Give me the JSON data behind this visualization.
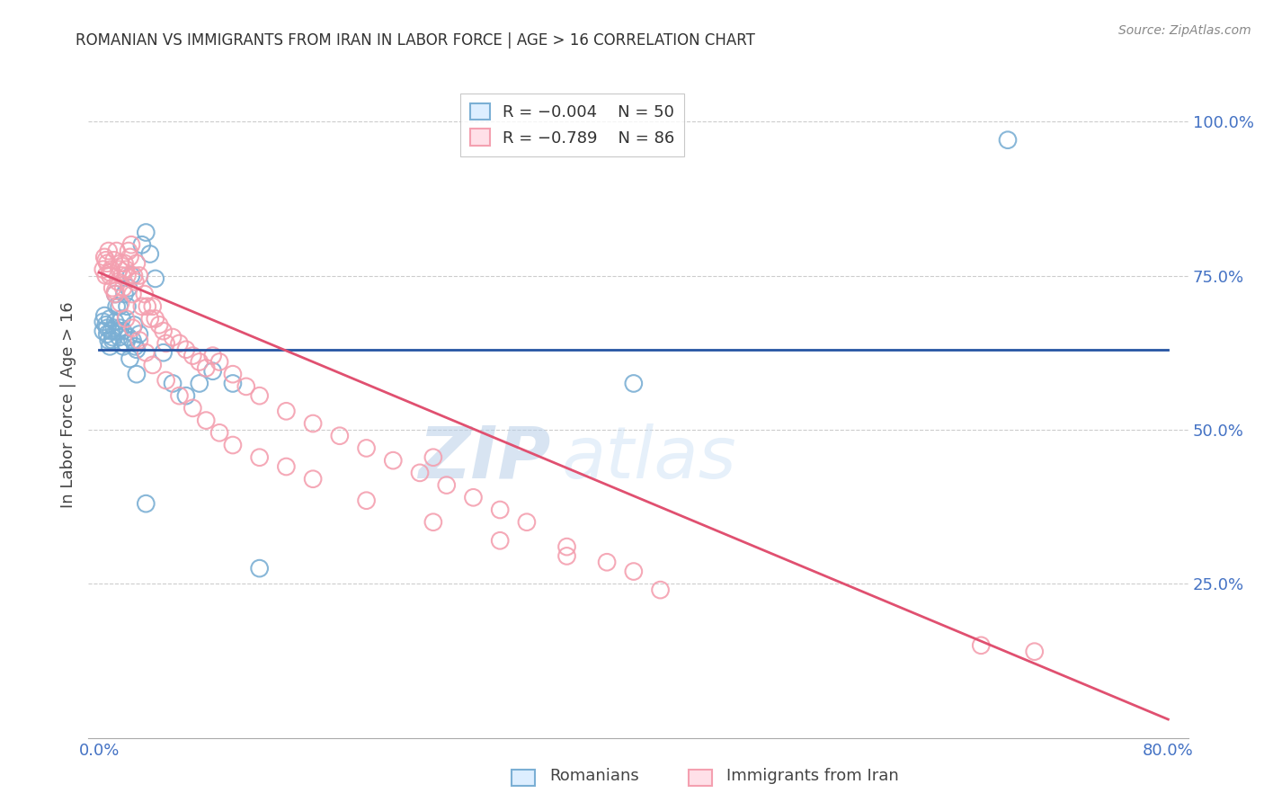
{
  "title": "ROMANIAN VS IMMIGRANTS FROM IRAN IN LABOR FORCE | AGE > 16 CORRELATION CHART",
  "source": "Source: ZipAtlas.com",
  "ylabel": "In Labor Force | Age > 16",
  "xlabel_romanians": "Romanians",
  "xlabel_iran": "Immigrants from Iran",
  "xlim": [
    0.0,
    0.8
  ],
  "ylim": [
    0.0,
    1.05
  ],
  "ytick_values": [
    0.25,
    0.5,
    0.75,
    1.0
  ],
  "ytick_labels": [
    "25.0%",
    "50.0%",
    "75.0%",
    "100.0%"
  ],
  "xtick_labels": [
    "0.0%",
    "",
    "",
    "",
    "",
    "",
    "",
    "",
    "80.0%"
  ],
  "xtick_values": [
    0.0,
    0.1,
    0.2,
    0.3,
    0.4,
    0.5,
    0.6,
    0.7,
    0.8
  ],
  "romanian_color": "#7BAFD4",
  "iran_color": "#F4A0B0",
  "legend_R_romanian": "-0.004",
  "legend_N_romanian": "50",
  "legend_R_iran": "-0.789",
  "legend_N_iran": "86",
  "blue_line_y": 0.63,
  "pink_line_start_x": 0.0,
  "pink_line_start_y": 0.755,
  "pink_line_end_x": 0.8,
  "pink_line_end_y": 0.03,
  "watermark_zip": "ZIP",
  "watermark_atlas": "atlas",
  "background_color": "#ffffff",
  "grid_color": "#cccccc",
  "title_color": "#333333",
  "axis_label_color": "#444444",
  "tick_label_color": "#4472c4",
  "romanian_scatter_x": [
    0.003,
    0.005,
    0.006,
    0.007,
    0.008,
    0.009,
    0.01,
    0.011,
    0.012,
    0.013,
    0.014,
    0.015,
    0.016,
    0.017,
    0.018,
    0.019,
    0.02,
    0.021,
    0.022,
    0.023,
    0.024,
    0.025,
    0.026,
    0.027,
    0.028,
    0.03,
    0.032,
    0.035,
    0.038,
    0.042,
    0.048,
    0.055,
    0.065,
    0.075,
    0.085,
    0.1,
    0.12,
    0.003,
    0.004,
    0.006,
    0.008,
    0.01,
    0.012,
    0.015,
    0.018,
    0.022,
    0.028,
    0.035,
    0.4,
    0.68
  ],
  "romanian_scatter_y": [
    0.66,
    0.67,
    0.655,
    0.645,
    0.68,
    0.66,
    0.65,
    0.665,
    0.675,
    0.7,
    0.66,
    0.65,
    0.665,
    0.68,
    0.66,
    0.72,
    0.64,
    0.7,
    0.73,
    0.615,
    0.75,
    0.645,
    0.67,
    0.635,
    0.59,
    0.655,
    0.8,
    0.82,
    0.785,
    0.745,
    0.625,
    0.575,
    0.555,
    0.575,
    0.595,
    0.575,
    0.275,
    0.675,
    0.685,
    0.665,
    0.635,
    0.645,
    0.72,
    0.7,
    0.635,
    0.65,
    0.63,
    0.38,
    0.575,
    0.97
  ],
  "iran_scatter_x": [
    0.003,
    0.004,
    0.005,
    0.006,
    0.007,
    0.008,
    0.009,
    0.01,
    0.011,
    0.012,
    0.013,
    0.014,
    0.015,
    0.016,
    0.017,
    0.018,
    0.019,
    0.02,
    0.021,
    0.022,
    0.023,
    0.024,
    0.025,
    0.026,
    0.027,
    0.028,
    0.03,
    0.032,
    0.034,
    0.036,
    0.038,
    0.04,
    0.042,
    0.045,
    0.048,
    0.05,
    0.055,
    0.06,
    0.065,
    0.07,
    0.075,
    0.08,
    0.085,
    0.09,
    0.1,
    0.11,
    0.12,
    0.14,
    0.16,
    0.18,
    0.2,
    0.22,
    0.24,
    0.26,
    0.28,
    0.3,
    0.32,
    0.35,
    0.38,
    0.42,
    0.005,
    0.008,
    0.012,
    0.016,
    0.02,
    0.025,
    0.03,
    0.035,
    0.04,
    0.05,
    0.06,
    0.07,
    0.08,
    0.09,
    0.1,
    0.12,
    0.14,
    0.16,
    0.2,
    0.25,
    0.3,
    0.35,
    0.4,
    0.25,
    0.66,
    0.7
  ],
  "iran_scatter_y": [
    0.76,
    0.78,
    0.75,
    0.77,
    0.79,
    0.75,
    0.76,
    0.73,
    0.775,
    0.72,
    0.79,
    0.74,
    0.76,
    0.77,
    0.75,
    0.73,
    0.77,
    0.76,
    0.75,
    0.79,
    0.78,
    0.8,
    0.72,
    0.75,
    0.74,
    0.77,
    0.75,
    0.7,
    0.72,
    0.7,
    0.68,
    0.7,
    0.68,
    0.67,
    0.66,
    0.64,
    0.65,
    0.64,
    0.63,
    0.62,
    0.61,
    0.6,
    0.62,
    0.61,
    0.59,
    0.57,
    0.555,
    0.53,
    0.51,
    0.49,
    0.47,
    0.45,
    0.43,
    0.41,
    0.39,
    0.37,
    0.35,
    0.31,
    0.285,
    0.24,
    0.775,
    0.755,
    0.725,
    0.705,
    0.68,
    0.665,
    0.645,
    0.625,
    0.605,
    0.58,
    0.555,
    0.535,
    0.515,
    0.495,
    0.475,
    0.455,
    0.44,
    0.42,
    0.385,
    0.35,
    0.32,
    0.295,
    0.27,
    0.455,
    0.15,
    0.14
  ]
}
